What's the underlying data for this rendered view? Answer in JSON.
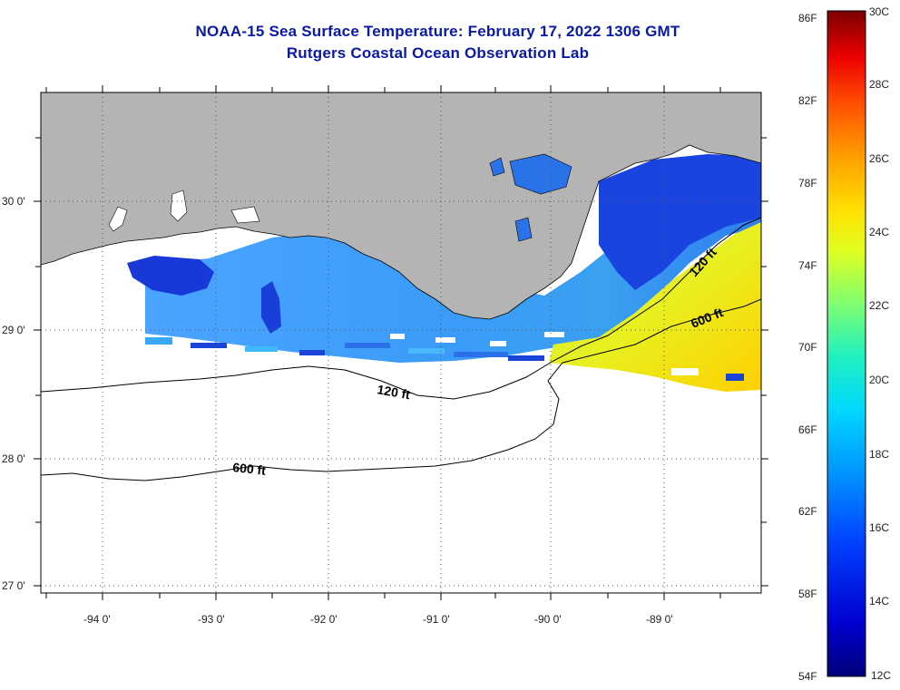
{
  "title": {
    "line1": "NOAA-15 Sea Surface Temperature:  February 17, 2022 1306 GMT",
    "line2": "Rutgers Coastal Ocean Observation Lab"
  },
  "map": {
    "lon_labels": [
      "-94 0'",
      "-93 0'",
      "-92 0'",
      "-91 0'",
      "-90 0'",
      "-89 0'"
    ],
    "lat_labels": [
      "30 0'",
      "29 0'",
      "28 0'",
      "27 0'"
    ],
    "contour_labels": [
      "120 ft",
      "600 ft",
      "120 ft",
      "600 ft"
    ],
    "colors": {
      "land": "#b4b4b4",
      "ocean_nodata": "#ffffff",
      "title": "#0a1aa8"
    }
  },
  "colorbar": {
    "fahrenheit": [
      "86F",
      "82F",
      "78F",
      "74F",
      "70F",
      "66F",
      "62F",
      "58F",
      "54F"
    ],
    "celsius": [
      "30C",
      "28C",
      "26C",
      "24C",
      "22C",
      "20C",
      "18C",
      "16C",
      "14C",
      "12C"
    ],
    "min_c": 12,
    "max_c": 30
  }
}
